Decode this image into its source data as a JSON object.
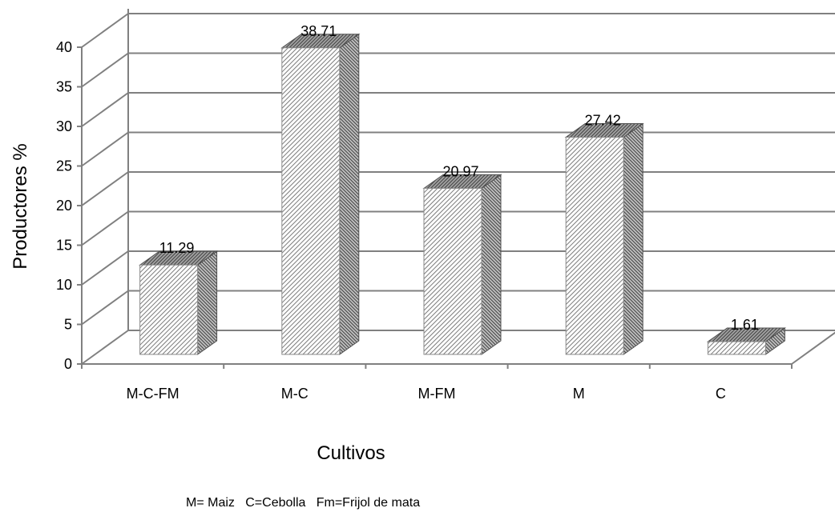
{
  "chart_data": {
    "type": "bar",
    "style": "3d-column",
    "categories": [
      "M-C-FM",
      "M-C",
      "M-FM",
      "M",
      "C"
    ],
    "values": [
      11.29,
      38.71,
      20.97,
      27.42,
      1.61
    ],
    "data_labels": [
      "11.29",
      "38.71",
      "20.97",
      "27.42",
      "1.61"
    ],
    "ylabel": "Productores %",
    "xlabel": "Cultivos",
    "ylim": [
      0,
      40
    ],
    "yticks": [
      0,
      5,
      10,
      15,
      20,
      25,
      30,
      35,
      40
    ],
    "grid": true,
    "legend": "none"
  },
  "footnote": "M= Maiz   C=Cebolla   Fm=Frijol de mata",
  "colors": {
    "grid": "#808080",
    "bar_front": "#9a9a9a",
    "bar_side": "#606060",
    "bar_top": "#7a7a7a"
  }
}
